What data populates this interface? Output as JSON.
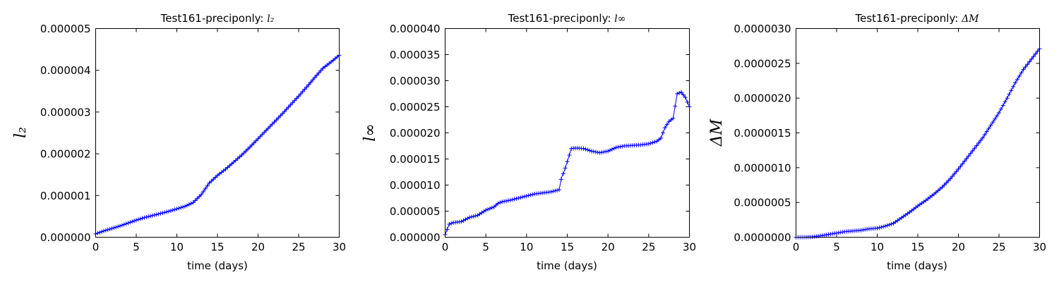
{
  "chart_data": [
    {
      "type": "line",
      "title": "Test161-preciponly: ",
      "title_symbol": "l₂",
      "xlabel": "time (days)",
      "ylabel": "l₂",
      "xlim": [
        0,
        30
      ],
      "ylim": [
        0,
        5e-06
      ],
      "xticks": [
        0,
        5,
        10,
        15,
        20,
        25,
        30
      ],
      "xtick_labels": [
        "0",
        "5",
        "10",
        "15",
        "20",
        "25",
        "30"
      ],
      "yticks": [
        0,
        1e-06,
        2e-06,
        3e-06,
        4e-06,
        5e-06
      ],
      "ytick_labels": [
        "0.000000",
        "0.000001",
        "0.000002",
        "0.000003",
        "0.000004",
        "0.000005"
      ],
      "marker": "+",
      "color": "#0000ff",
      "series": [
        {
          "x": [
            0,
            1,
            2,
            3,
            4,
            5,
            6,
            7,
            8,
            9,
            10,
            11,
            12,
            13,
            14,
            15,
            16,
            17,
            18,
            19,
            20,
            21,
            22,
            23,
            24,
            25,
            26,
            27,
            28,
            29,
            30
          ],
          "y": [
            8e-08,
            1.5e-07,
            2.1e-07,
            2.7e-07,
            3.4e-07,
            4.1e-07,
            4.7e-07,
            5.2e-07,
            5.7e-07,
            6.2e-07,
            6.8e-07,
            7.4e-07,
            8.3e-07,
            1.02e-06,
            1.3e-06,
            1.48e-06,
            1.63e-06,
            1.8e-06,
            1.97e-06,
            2.16e-06,
            2.36e-06,
            2.56e-06,
            2.76e-06,
            2.96e-06,
            3.17e-06,
            3.38e-06,
            3.6e-06,
            3.83e-06,
            4.05e-06,
            4.2e-06,
            4.36e-06
          ]
        }
      ]
    },
    {
      "type": "line",
      "title": "Test161-preciponly: ",
      "title_symbol": "l∞",
      "xlabel": "time (days)",
      "ylabel": "l∞",
      "xlim": [
        0,
        30
      ],
      "ylim": [
        0,
        4e-05
      ],
      "xticks": [
        0,
        5,
        10,
        15,
        20,
        25,
        30
      ],
      "xtick_labels": [
        "0",
        "5",
        "10",
        "15",
        "20",
        "25",
        "30"
      ],
      "yticks": [
        0,
        5e-06,
        1e-05,
        1.5e-05,
        2e-05,
        2.5e-05,
        3e-05,
        3.5e-05,
        4e-05
      ],
      "ytick_labels": [
        "0.000000",
        "0.000005",
        "0.000010",
        "0.000015",
        "0.000020",
        "0.000025",
        "0.000030",
        "0.000035",
        "0.000040"
      ],
      "marker": "+",
      "color": "#0000ff",
      "series": [
        {
          "x": [
            0,
            0.5,
            1,
            2,
            3,
            4,
            5,
            6,
            6.5,
            7,
            8,
            9,
            10,
            11,
            12,
            13,
            14,
            14.3,
            14.6,
            15,
            15.5,
            16,
            17,
            18,
            19,
            20,
            21,
            22,
            23,
            24,
            25,
            26,
            26.5,
            27,
            27.5,
            28,
            28.5,
            29,
            29.5,
            30
          ],
          "y": [
            5e-07,
            2.5e-06,
            2.8e-06,
            3e-06,
            3.8e-06,
            4.2e-06,
            5.2e-06,
            5.8e-06,
            6.5e-06,
            6.8e-06,
            7.1e-06,
            7.5e-06,
            7.9e-06,
            8.3e-06,
            8.5e-06,
            8.7e-06,
            9.1e-06,
            1.15e-05,
            1.25e-05,
            1.45e-05,
            1.7e-05,
            1.71e-05,
            1.7e-05,
            1.65e-05,
            1.62e-05,
            1.65e-05,
            1.72e-05,
            1.75e-05,
            1.76e-05,
            1.77e-05,
            1.79e-05,
            1.84e-05,
            1.9e-05,
            2.1e-05,
            2.22e-05,
            2.28e-05,
            2.75e-05,
            2.78e-05,
            2.68e-05,
            2.5e-05
          ]
        }
      ]
    },
    {
      "type": "line",
      "title": "Test161-preciponly: ",
      "title_symbol": "ΔM",
      "xlabel": "time (days)",
      "ylabel": "ΔM",
      "xlim": [
        0,
        30
      ],
      "ylim": [
        0,
        3e-06
      ],
      "xticks": [
        0,
        5,
        10,
        15,
        20,
        25,
        30
      ],
      "xtick_labels": [
        "0",
        "5",
        "10",
        "15",
        "20",
        "25",
        "30"
      ],
      "yticks": [
        0,
        5e-07,
        1e-06,
        1.5e-06,
        2e-06,
        2.5e-06,
        3e-06
      ],
      "ytick_labels": [
        "0.0000000",
        "0.0000005",
        "0.0000010",
        "0.0000015",
        "0.0000020",
        "0.0000025",
        "0.0000030"
      ],
      "marker": "+",
      "color": "#0000ff",
      "series": [
        {
          "x": [
            0,
            1,
            2,
            3,
            4,
            5,
            6,
            7,
            8,
            9,
            10,
            11,
            12,
            13,
            14,
            15,
            16,
            17,
            18,
            19,
            20,
            21,
            22,
            23,
            24,
            25,
            26,
            27,
            28,
            29,
            30
          ],
          "y": [
            0,
            0,
            5e-09,
            2e-08,
            4e-08,
            6e-08,
            8e-08,
            9e-08,
            1e-07,
            1.2e-07,
            1.3e-07,
            1.6e-07,
            2e-07,
            2.8e-07,
            3.6e-07,
            4.5e-07,
            5.3e-07,
            6.2e-07,
            7.2e-07,
            8.4e-07,
            9.8e-07,
            1.13e-06,
            1.28e-06,
            1.43e-06,
            1.61e-06,
            1.79e-06,
            2e-06,
            2.22e-06,
            2.41e-06,
            2.56e-06,
            2.71e-06
          ]
        }
      ]
    }
  ]
}
